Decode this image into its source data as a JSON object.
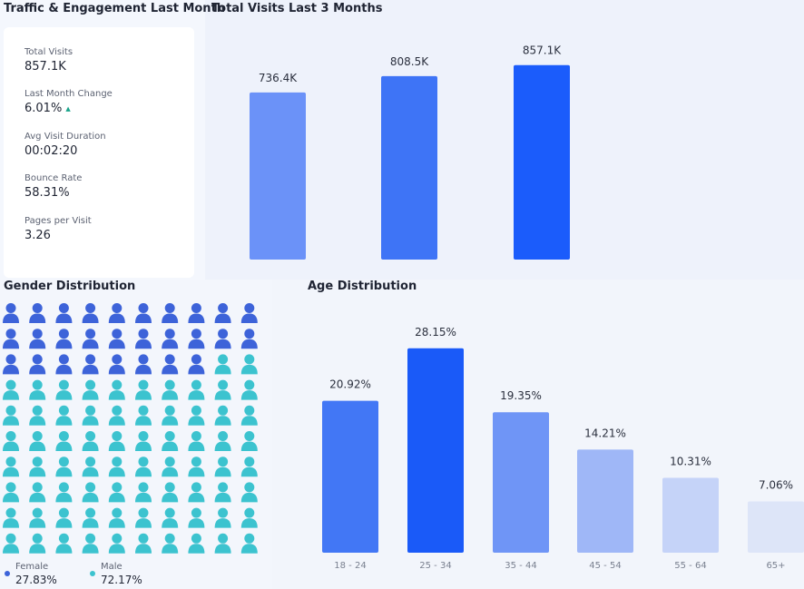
{
  "traffic": {
    "title": "Traffic & Engagement Last Month",
    "stats": [
      {
        "label": "Total Visits",
        "value": "857.1K"
      },
      {
        "label": "Last Month Change",
        "value": "6.01%",
        "trend": "up"
      },
      {
        "label": "Avg Visit Duration",
        "value": "00:02:20"
      },
      {
        "label": "Bounce Rate",
        "value": "58.31%"
      },
      {
        "label": "Pages per Visit",
        "value": "3.26"
      }
    ],
    "trend_up_icon": "triangle-up-icon"
  },
  "gender": {
    "title": "Gender Distribution",
    "female_label": "Female",
    "female_value": "27.83%",
    "male_label": "Male",
    "male_value": "72.17%",
    "female_count": 28,
    "male_count": 72,
    "female_color": "#3d63d9",
    "male_color": "#3cc3cf",
    "icon": "person-icon"
  },
  "chart_data": [
    {
      "type": "bar",
      "title": "Total Visits Last 3 Months",
      "categories": [
        "",
        "",
        ""
      ],
      "values": [
        736.4,
        808.5,
        857.1
      ],
      "value_labels": [
        "736.4K",
        "808.5K",
        "857.1K"
      ],
      "colors": [
        "#6b92f8",
        "#3e74f6",
        "#1b5cfb"
      ],
      "ylim": [
        0,
        1000
      ],
      "xlabel": "",
      "ylabel": ""
    },
    {
      "type": "bar",
      "title": "Age Distribution",
      "categories": [
        "18 - 24",
        "25 - 34",
        "35 - 44",
        "45 - 54",
        "55 - 64",
        "65+"
      ],
      "values": [
        20.92,
        28.15,
        19.35,
        14.21,
        10.31,
        7.06
      ],
      "value_labels": [
        "20.92%",
        "28.15%",
        "19.35%",
        "14.21%",
        "10.31%",
        "7.06%"
      ],
      "colors": [
        "#4277f5",
        "#1a5af8",
        "#6f95f6",
        "#9fb7f7",
        "#c5d3f8",
        "#dde5f8"
      ],
      "ylim": [
        0,
        35
      ],
      "xlabel": "",
      "ylabel": ""
    }
  ]
}
